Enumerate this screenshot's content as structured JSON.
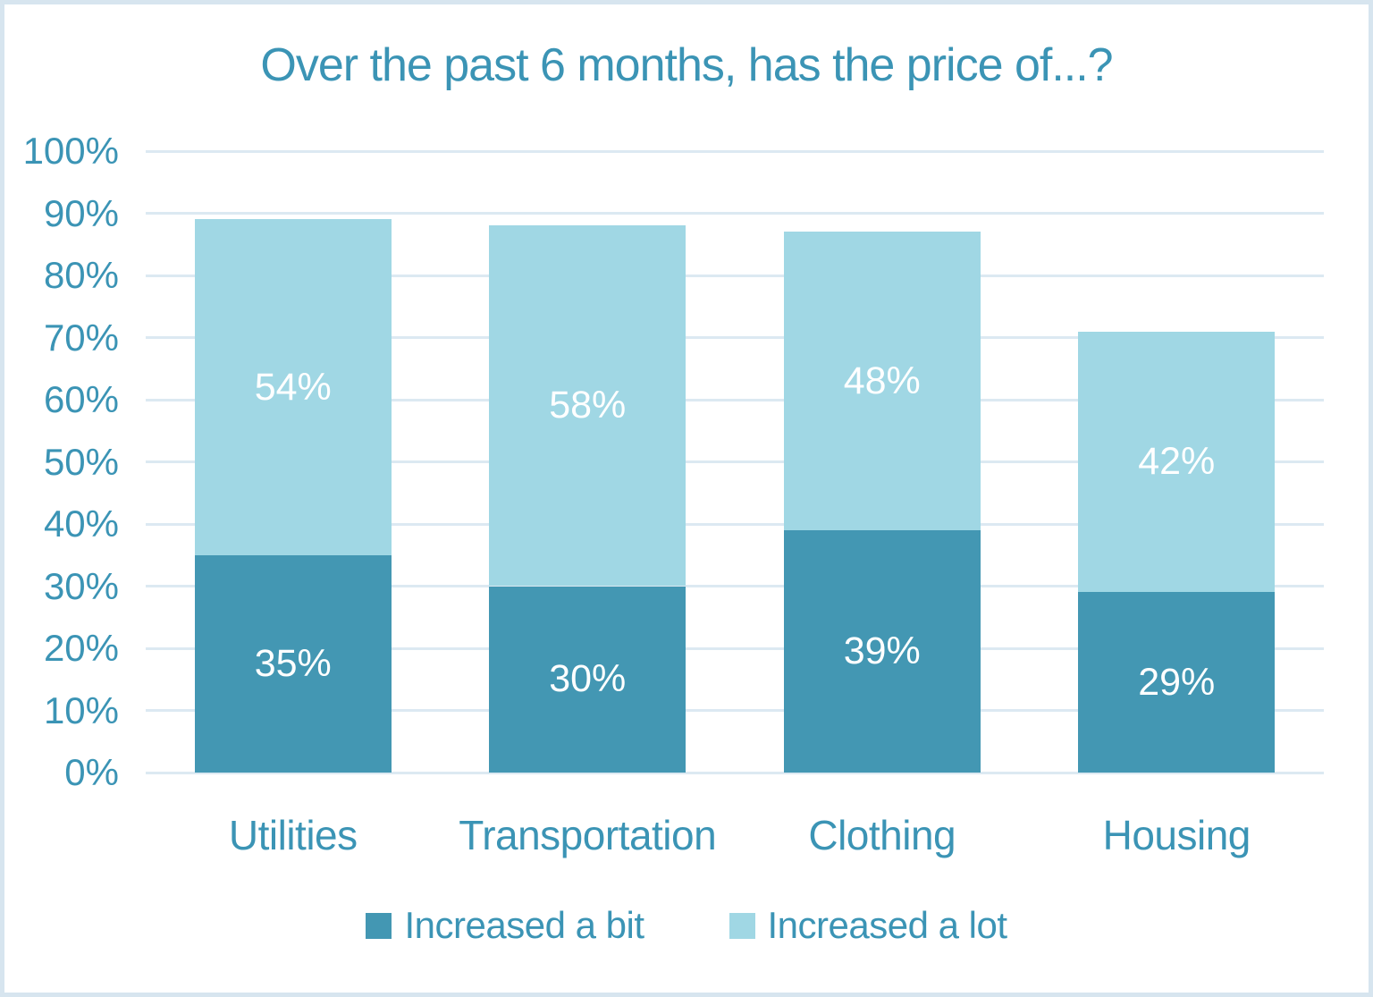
{
  "title": "Over the past 6 months, has the price of...?",
  "colors": {
    "increased_a_bit": "#4397b3",
    "increased_a_lot": "#a0d7e4",
    "axis_text": "#3b94b5",
    "gridline": "#dce9f2",
    "data_label_text": "#ffffff",
    "frame_border": "#d7e5ef",
    "background": "#ffffff"
  },
  "y_axis": {
    "tick_labels": [
      "100%",
      "90%",
      "80%",
      "70%",
      "60%",
      "50%",
      "40%",
      "30%",
      "20%",
      "10%",
      "0%"
    ]
  },
  "chart_data": {
    "type": "bar",
    "stacked": true,
    "title": "Over the past 6 months, has the price of...?",
    "categories": [
      "Utilities",
      "Transportation",
      "Clothing",
      "Housing"
    ],
    "series": [
      {
        "name": "Increased a bit",
        "color_key": "increased_a_bit",
        "values": [
          35,
          30,
          39,
          29
        ]
      },
      {
        "name": "Increased a lot",
        "color_key": "increased_a_lot",
        "values": [
          54,
          58,
          48,
          42
        ]
      }
    ],
    "totals": [
      89,
      88,
      87,
      71
    ],
    "xlabel": "",
    "ylabel": "",
    "ylim": [
      0,
      100
    ],
    "ytick_step": 10,
    "ytick_format": "percent",
    "data_label_format": "percent",
    "grid": true,
    "legend_position": "bottom"
  }
}
